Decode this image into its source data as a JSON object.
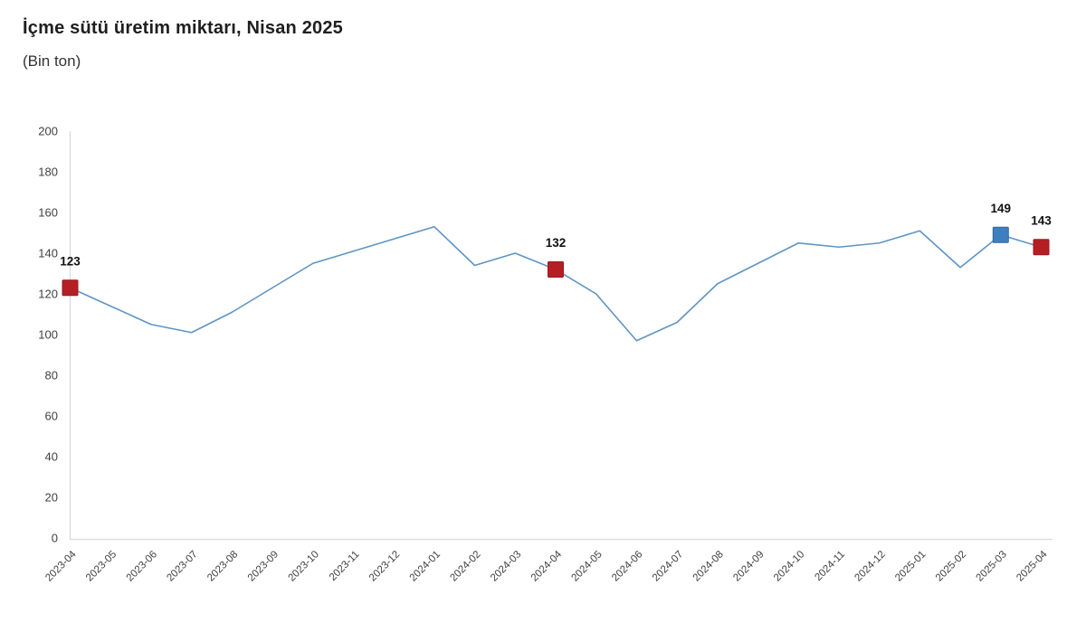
{
  "header": {
    "title": "İçme sütü üretim miktarı, Nisan 2025",
    "subtitle": "(Bin ton)"
  },
  "chart_data": {
    "type": "line",
    "title": "İçme sütü üretim miktarı, Nisan 2025",
    "subtitle": "(Bin ton)",
    "xlabel": "",
    "ylabel": "",
    "ylim": [
      0,
      200
    ],
    "grid": false,
    "legend": "none",
    "categories": [
      "2023-04",
      "2023-05",
      "2023-06",
      "2023-07",
      "2023-08",
      "2023-09",
      "2023-10",
      "2023-11",
      "2023-12",
      "2024-01",
      "2024-02",
      "2024-03",
      "2024-04",
      "2024-05",
      "2024-06",
      "2024-07",
      "2024-08",
      "2024-09",
      "2024-10",
      "2024-11",
      "2024-12",
      "2025-01",
      "2025-02",
      "2025-03",
      "2025-04"
    ],
    "values": [
      123,
      114,
      105,
      101,
      111,
      123,
      135,
      141,
      147,
      153,
      134,
      140,
      132,
      120,
      97,
      106,
      125,
      135,
      145,
      143,
      145,
      151,
      133,
      149,
      143
    ],
    "y_ticks": [
      0,
      20,
      40,
      60,
      80,
      100,
      120,
      140,
      160,
      180,
      200
    ],
    "line_color": "#5e94c4",
    "axis_color": "#d9d9d9",
    "tick_label_color": "#404040",
    "data_label_color": "#111111",
    "annotations": [
      {
        "category": "2023-04",
        "value": 123,
        "label": "123",
        "marker_color": "#b51f24",
        "marker_border": "#981a1f"
      },
      {
        "category": "2024-04",
        "value": 132,
        "label": "132",
        "marker_color": "#b51f24",
        "marker_border": "#981a1f"
      },
      {
        "category": "2025-03",
        "value": 149,
        "label": "149",
        "marker_color": "#3e7fc1",
        "marker_border": "#2f66a0"
      },
      {
        "category": "2025-04",
        "value": 143,
        "label": "143",
        "marker_color": "#b51f24",
        "marker_border": "#981a1f"
      }
    ]
  }
}
